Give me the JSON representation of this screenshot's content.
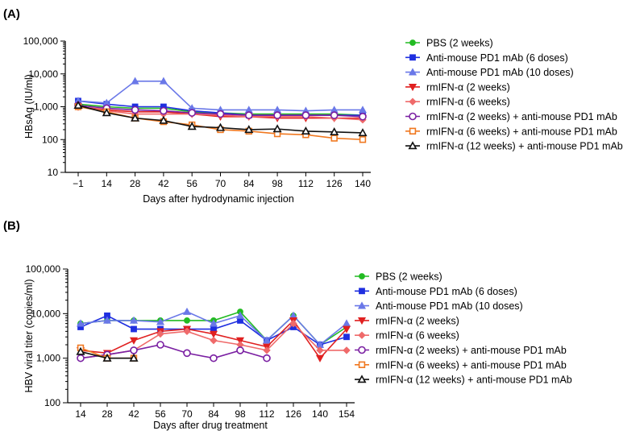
{
  "chart_data": [
    {
      "type": "line",
      "panel_label": "(A)",
      "xlabel": "Days after hydrodynamic injection",
      "ylabel": "HBsAg (IU/ml)",
      "yscale": "log",
      "ylim": [
        10,
        100000
      ],
      "yticks": [
        10,
        100,
        1000,
        10000,
        100000
      ],
      "ytick_labels": [
        "10",
        "100",
        "1,000",
        "10,000",
        "100,000"
      ],
      "x": [
        -1,
        14,
        28,
        42,
        56,
        70,
        84,
        98,
        112,
        126,
        140
      ],
      "xtick_labels": [
        "−1",
        "14",
        "28",
        "42",
        "56",
        "70",
        "84",
        "98",
        "112",
        "126",
        "140"
      ],
      "legend_position": "right",
      "series": [
        {
          "name": "PBS (2 weeks)",
          "color": "#22bb22",
          "marker": "circle",
          "values": [
            1200,
            1000,
            900,
            900,
            700,
            650,
            600,
            600,
            600,
            600,
            550
          ]
        },
        {
          "name": "Anti-mouse PD1 mAb (6 doses)",
          "color": "#1f2fe0",
          "marker": "square",
          "values": [
            1500,
            1200,
            1000,
            1000,
            750,
            650,
            550,
            550,
            550,
            550,
            550
          ]
        },
        {
          "name": "Anti-mouse PD1 mAb (10 doses)",
          "color": "#6a78e8",
          "marker": "triangle",
          "values": [
            1500,
            1300,
            6000,
            6000,
            900,
            800,
            800,
            800,
            750,
            800,
            800
          ]
        },
        {
          "name": "rmIFN-α (2 weeks)",
          "color": "#e02020",
          "marker": "triangle-down",
          "values": [
            1000,
            800,
            700,
            700,
            600,
            500,
            500,
            450,
            450,
            450,
            450
          ]
        },
        {
          "name": "rmIFN-α (6 weeks)",
          "color": "#ef6a6a",
          "marker": "diamond",
          "values": [
            1000,
            750,
            600,
            600,
            600,
            550,
            500,
            500,
            500,
            450,
            400
          ]
        },
        {
          "name": "rmIFN-α (2 weeks) + anti-mouse PD1 mAb",
          "color": "#7a1fa2",
          "marker": "open-circle",
          "values": [
            1100,
            900,
            800,
            750,
            650,
            600,
            550,
            550,
            550,
            550,
            500
          ]
        },
        {
          "name": "rmIFN-α (6 weeks) + anti-mouse PD1 mAb",
          "color": "#f07820",
          "marker": "open-square",
          "values": [
            1000,
            700,
            450,
            350,
            280,
            200,
            180,
            150,
            140,
            110,
            100
          ]
        },
        {
          "name": "rmIFN-α (12 weeks) + anti-mouse PD1 mAb",
          "color": "#111111",
          "marker": "open-triangle",
          "values": [
            1100,
            650,
            450,
            380,
            250,
            230,
            200,
            210,
            180,
            170,
            160
          ]
        }
      ]
    },
    {
      "type": "line",
      "panel_label": "(B)",
      "xlabel": "Days after drug treatment",
      "ylabel": "HBV viral titer (copies/ml)",
      "yscale": "log",
      "ylim": [
        100,
        100000
      ],
      "yticks": [
        100,
        1000,
        10000,
        100000
      ],
      "ytick_labels": [
        "100",
        "1,000",
        "10,000",
        "100,000"
      ],
      "x": [
        14,
        28,
        42,
        56,
        70,
        84,
        98,
        112,
        126,
        140,
        154
      ],
      "xtick_labels": [
        "14",
        "28",
        "42",
        "56",
        "70",
        "84",
        "98",
        "112",
        "126",
        "140",
        "154"
      ],
      "legend_position": "right",
      "series": [
        {
          "name": "PBS (2 weeks)",
          "color": "#22bb22",
          "marker": "circle",
          "values": [
            6000,
            7000,
            7000,
            7000,
            7000,
            7000,
            11000,
            2500,
            9000,
            2000,
            5000
          ]
        },
        {
          "name": "Anti-mouse PD1 mAb (6 doses)",
          "color": "#1f2fe0",
          "marker": "square",
          "values": [
            5000,
            9000,
            4500,
            4500,
            4500,
            4500,
            7000,
            2500,
            5000,
            2000,
            3000
          ]
        },
        {
          "name": "Anti-mouse PD1 mAb (10 doses)",
          "color": "#6a78e8",
          "marker": "triangle",
          "values": [
            6000,
            7000,
            7000,
            6500,
            11000,
            6000,
            9000,
            2500,
            9000,
            2000,
            6000
          ]
        },
        {
          "name": "rmIFN-α (2 weeks)",
          "color": "#e02020",
          "marker": "triangle-down",
          "values": [
            1500,
            1300,
            2500,
            4000,
            4500,
            3500,
            2500,
            1800,
            7000,
            1000,
            4500
          ]
        },
        {
          "name": "rmIFN-α (6 weeks)",
          "color": "#ef6a6a",
          "marker": "diamond",
          "values": [
            1000,
            1200,
            1500,
            3500,
            4000,
            2500,
            2000,
            1500,
            6000,
            1500,
            1500
          ]
        },
        {
          "name": "rmIFN-α (2 weeks) + anti-mouse PD1 mAb",
          "color": "#7a1fa2",
          "marker": "open-circle",
          "values": [
            1000,
            1200,
            1500,
            2000,
            1300,
            1000,
            1500,
            1000,
            null,
            null,
            null
          ]
        },
        {
          "name": "rmIFN-α (6 weeks) + anti-mouse PD1 mAb",
          "color": "#f07820",
          "marker": "open-square",
          "values": [
            1700,
            1000,
            1000,
            null,
            null,
            null,
            null,
            null,
            null,
            null,
            null
          ]
        },
        {
          "name": "rmIFN-α (12 weeks) + anti-mouse PD1 mAb",
          "color": "#111111",
          "marker": "open-triangle",
          "values": [
            1400,
            1000,
            1000,
            null,
            null,
            null,
            null,
            null,
            null,
            null,
            null
          ]
        }
      ]
    }
  ]
}
